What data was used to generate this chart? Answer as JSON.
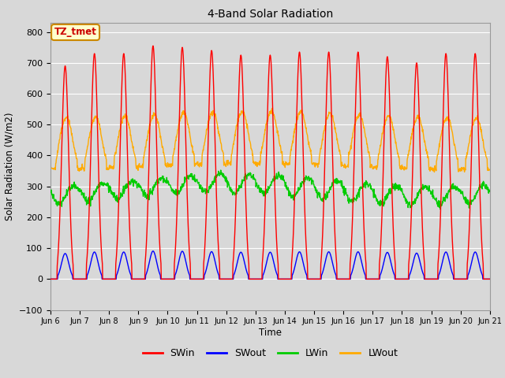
{
  "title": "4-Band Solar Radiation",
  "xlabel": "Time",
  "ylabel": "Solar Radiation (W/m2)",
  "ylim": [
    -100,
    830
  ],
  "yticks": [
    -100,
    0,
    100,
    200,
    300,
    400,
    500,
    600,
    700,
    800
  ],
  "start_day": 6,
  "end_day": 21,
  "hours_per_day": 24,
  "annotation_text": "TZ_tmet",
  "annotation_facecolor": "#ffffcc",
  "annotation_edgecolor": "#cc8800",
  "annotation_textcolor": "#cc0000",
  "colors": {
    "SWin": "#ff0000",
    "SWout": "#0000ff",
    "LWin": "#00cc00",
    "LWout": "#ffaa00"
  },
  "background_color": "#d8d8d8",
  "grid_color": "#ffffff",
  "linewidth": 1.0
}
